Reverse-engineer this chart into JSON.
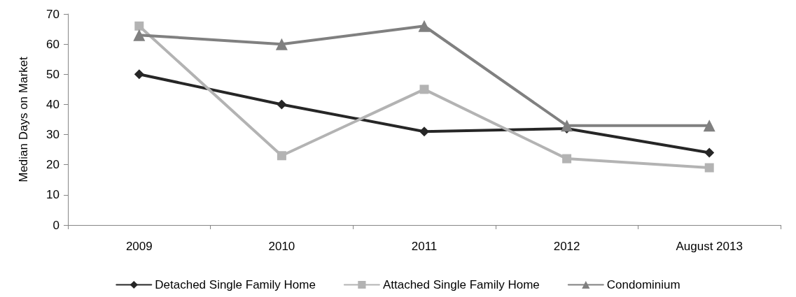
{
  "chart_data": {
    "type": "line",
    "ylabel": "Median Days on Market",
    "categories": [
      "2009",
      "2010",
      "2011",
      "2012",
      "August 2013"
    ],
    "series": [
      {
        "name": "Detached Single Family Home",
        "color": "#262626",
        "marker": "diamond",
        "values": [
          50,
          40,
          31,
          32,
          24
        ]
      },
      {
        "name": "Attached Single Family Home",
        "color": "#b3b3b3",
        "marker": "square",
        "values": [
          66,
          23,
          45,
          22,
          19
        ]
      },
      {
        "name": "Condominium",
        "color": "#808080",
        "marker": "triangle",
        "values": [
          63,
          60,
          66,
          33,
          33
        ]
      }
    ],
    "ylim": [
      0,
      70
    ],
    "yticks": [
      0,
      10,
      20,
      30,
      40,
      50,
      60,
      70
    ],
    "grid": false,
    "legend": "bottom",
    "line_style": "solid"
  }
}
